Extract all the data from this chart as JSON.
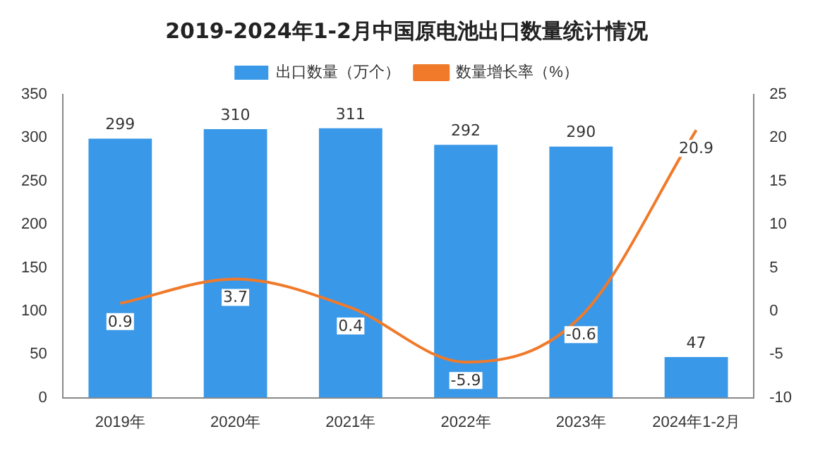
{
  "chart_data": {
    "type": "bar",
    "title": "2019-2024年1-2月中国原电池出口数量统计情况",
    "categories": [
      "2019年",
      "2020年",
      "2021年",
      "2022年",
      "2023年",
      "2024年1-2月"
    ],
    "series": [
      {
        "name": "出口数量（万个）",
        "color": "#3a98e8",
        "values": [
          299,
          310,
          311,
          292,
          290,
          47
        ]
      },
      {
        "name": "数量增长率（%）",
        "type": "line",
        "axis": "y2",
        "color": "#f07a2a",
        "values": [
          0.9,
          3.7,
          0.4,
          -5.9,
          -0.6,
          20.9
        ]
      }
    ],
    "ylim": [
      0,
      350
    ],
    "yticks": [
      0,
      50,
      100,
      150,
      200,
      250,
      300,
      350
    ],
    "y2lim": [
      -10,
      25
    ],
    "y2ticks": [
      -10,
      -5,
      0,
      5,
      10,
      15,
      20,
      25
    ],
    "legend": "top",
    "data_labels": true
  }
}
